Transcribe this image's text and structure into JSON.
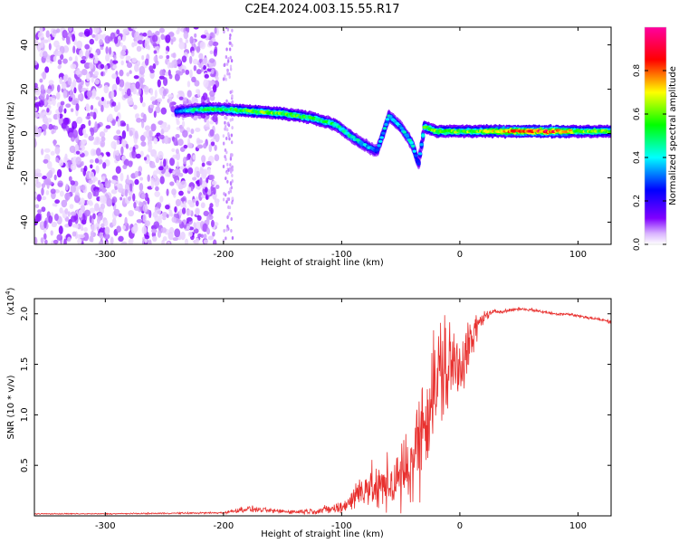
{
  "figure": {
    "title": "C2E4.2024.003.15.55.R17"
  },
  "chart_data": [
    {
      "type": "heatmap",
      "xlabel": "Height of straight line (km)",
      "ylabel": "Frequency (Hz)",
      "xlim": [
        -360,
        128
      ],
      "ylim": [
        -50,
        48
      ],
      "xticks": [
        -300,
        -200,
        -100,
        0,
        100
      ],
      "yticks": [
        -40,
        -20,
        0,
        20,
        40
      ],
      "colorbar": {
        "label": "Normalized spectral amplitude",
        "range": [
          0.0,
          1.0
        ],
        "ticks": [
          0.0,
          0.2,
          0.4,
          0.6,
          0.8
        ],
        "colormap": "rainbow: white → violet → blue → cyan → green → yellow → red → magenta",
        "colors": [
          "#ffffff",
          "#8000ff",
          "#0000ff",
          "#00ffff",
          "#00ff00",
          "#ffff00",
          "#ff0000",
          "#ff00a0"
        ]
      },
      "ridge": {
        "description": "dominant frequency trace",
        "x": [
          -240,
          -215,
          -200,
          -175,
          -150,
          -125,
          -105,
          -90,
          -78,
          -70,
          -60,
          -50,
          -40,
          -35,
          -30,
          -20,
          -10,
          0,
          20,
          50,
          80,
          100,
          128
        ],
        "y": [
          10,
          11,
          11,
          10,
          9,
          7,
          4,
          -2,
          -6,
          -8,
          8,
          3,
          -5,
          -14,
          3,
          1,
          1,
          1,
          1,
          1,
          1,
          1,
          1
        ],
        "amplitude": [
          0.35,
          0.55,
          0.5,
          0.6,
          0.6,
          0.55,
          0.5,
          0.45,
          0.4,
          0.35,
          0.45,
          0.4,
          0.45,
          0.3,
          0.55,
          0.6,
          0.6,
          0.6,
          0.65,
          0.85,
          0.85,
          0.6,
          0.6
        ]
      },
      "noise_region": {
        "x_range": [
          -360,
          -205
        ],
        "y_range": [
          -50,
          48
        ],
        "amplitude_range": [
          0.02,
          0.15
        ]
      }
    },
    {
      "type": "line",
      "xlabel": "Height of straight line (km)",
      "ylabel": "SNR (10 * v/v)",
      "y_multiplier": "(x10",
      "y_multiplier_exponent": "4",
      "y_multiplier_close": ")",
      "xlim": [
        -360,
        128
      ],
      "ylim": [
        0,
        2.15
      ],
      "xticks": [
        -300,
        -200,
        -100,
        0,
        100
      ],
      "yticks": [
        0.5,
        1.0,
        1.5,
        2.0
      ],
      "ytick_labels": [
        "0.5",
        "1.0",
        "1.5",
        "2.0"
      ],
      "series": [
        {
          "color": "#e8302e",
          "x": [
            -360,
            -300,
            -250,
            -200,
            -180,
            -160,
            -140,
            -120,
            -100,
            -90,
            -80,
            -70,
            -60,
            -50,
            -40,
            -35,
            -30,
            -25,
            -20,
            -15,
            -10,
            -5,
            0,
            5,
            10,
            15,
            20,
            25,
            30,
            40,
            50,
            60,
            70,
            80,
            90,
            100,
            110,
            120,
            128
          ],
          "y": [
            0.02,
            0.02,
            0.025,
            0.03,
            0.07,
            0.05,
            0.04,
            0.05,
            0.08,
            0.18,
            0.3,
            0.25,
            0.32,
            0.36,
            0.55,
            0.75,
            0.95,
            1.15,
            1.3,
            1.45,
            1.45,
            1.5,
            1.52,
            1.62,
            1.72,
            1.88,
            1.97,
            2.0,
            2.02,
            2.03,
            2.05,
            2.04,
            2.02,
            2.0,
            2.0,
            1.98,
            1.96,
            1.94,
            1.92
          ],
          "noise": [
            0.005,
            0.005,
            0.006,
            0.01,
            0.03,
            0.02,
            0.02,
            0.03,
            0.06,
            0.12,
            0.2,
            0.2,
            0.25,
            0.32,
            0.4,
            0.45,
            0.5,
            0.55,
            0.6,
            0.55,
            0.5,
            0.4,
            0.35,
            0.28,
            0.2,
            0.12,
            0.06,
            0.03,
            0.02,
            0.015,
            0.015,
            0.015,
            0.015,
            0.015,
            0.015,
            0.015,
            0.015,
            0.015,
            0.015
          ]
        }
      ]
    }
  ]
}
